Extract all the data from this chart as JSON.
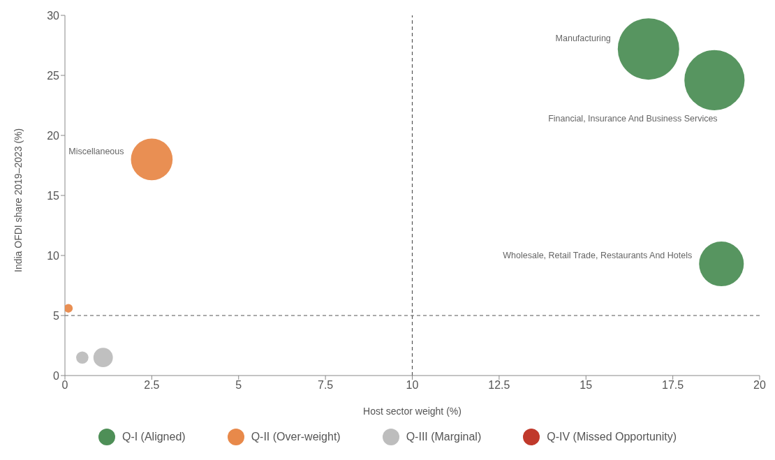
{
  "chart_data": {
    "type": "bubble",
    "xlabel": "Host sector weight (%)",
    "ylabel": "India OFDI share 2019–2023 (%)",
    "xlim": [
      0,
      20
    ],
    "xticks": [
      0,
      2.5,
      5,
      7.5,
      10,
      12.5,
      15,
      17.5,
      20
    ],
    "ylim": [
      0,
      30
    ],
    "yticks": [
      0,
      5,
      10,
      15,
      20,
      25,
      30
    ],
    "grid": false,
    "legend": "bottom",
    "series": [
      {
        "name": "Q-I (Aligned)",
        "color": "#4e8f57",
        "x": [
          16.8,
          18.7,
          18.9
        ],
        "values": [
          27.2,
          24.6,
          9.3
        ],
        "sizes": [
          1,
          0.96,
          0.53
        ]
      },
      {
        "name": "Q-II (Over-weight)",
        "color": "#e8894a",
        "x": [
          2.5,
          0.1
        ],
        "values": [
          18,
          5.6
        ],
        "sizes": [
          0.46,
          0.02
        ]
      },
      {
        "name": "Q-III (Marginal)",
        "color": "#bdbdbd",
        "x": [
          0.5,
          1.1
        ],
        "values": [
          1.5,
          1.5
        ],
        "sizes": [
          0.04,
          0.1
        ]
      },
      {
        "name": "Q-IV (Missed Opportunity)",
        "color": "#c0392b"
      }
    ],
    "ref_lines": [
      {
        "axis": "x",
        "value": 10,
        "line_style": "dashed",
        "color": "#555555"
      },
      {
        "axis": "y",
        "value": 5,
        "line_style": "dashed",
        "color": "#555555"
      }
    ],
    "annotations": [
      "Manufacturing",
      "Financial, Insurance And Business Services",
      "Wholesale, Retail Trade, Restaurants And Hotels",
      "Miscellaneous"
    ]
  }
}
